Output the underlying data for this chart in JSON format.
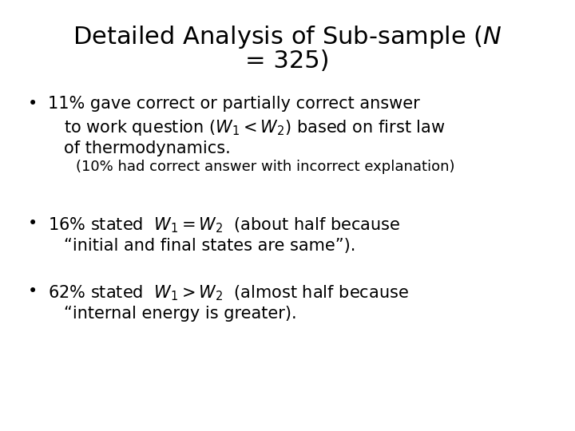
{
  "background_color": "#ffffff",
  "text_color": "#000000",
  "title_fontsize": 22,
  "bullet_fontsize": 15,
  "sub_bullet_fontsize": 13,
  "title_line1": "Detailed Analysis of Sub-sample ($\\mathit{N}$",
  "title_line2": "= 325)",
  "b1_l1": "11% gave correct or partially correct answer",
  "b1_l2": "to work question ($W_1 < W_2$) based on first law",
  "b1_l3": "of thermodynamics.",
  "b1_sub": "(10% had correct answer with incorrect explanation)",
  "b2_l1": "16% stated  $W_1 = W_2$  (about half because",
  "b2_l2": "“initial and final states are same”).",
  "b3_l1": "62% stated  $W_1 > W_2$  (almost half because",
  "b3_l2": "“internal energy is greater).",
  "bullet_char": "•"
}
